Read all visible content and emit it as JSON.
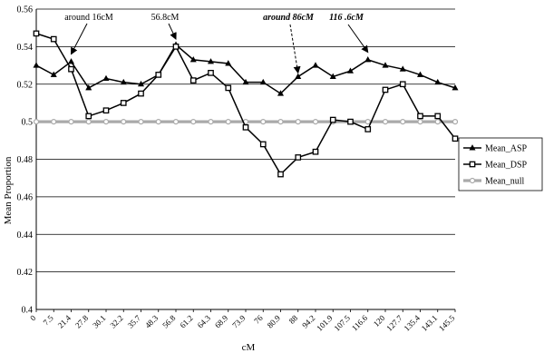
{
  "chart_data": {
    "type": "line",
    "title": "",
    "xlabel": "cM",
    "ylabel": "Mean Proportion",
    "ylim": [
      0.4,
      0.56
    ],
    "yticks": [
      "0.4",
      "0.42",
      "0.44",
      "0.46",
      "0.48",
      "0.5",
      "0.52",
      "0.54",
      "0.56"
    ],
    "grid": "horizontal",
    "legend_position": "right",
    "categories": [
      "0",
      "7.5",
      "21.4",
      "27.8",
      "30.1",
      "32.2",
      "35.7",
      "48.3",
      "56.8",
      "61.2",
      "64.3",
      "68.9",
      "73.9",
      "76",
      "80.9",
      "88",
      "94.2",
      "101.9",
      "107.5",
      "116.6",
      "120",
      "127.7",
      "135.4",
      "143.1",
      "145.5"
    ],
    "series": [
      {
        "name": "Mean_ASP",
        "marker": "triangle",
        "color": "#000000",
        "values": [
          0.53,
          0.525,
          0.532,
          0.518,
          0.523,
          0.521,
          0.52,
          0.525,
          0.541,
          0.533,
          0.532,
          0.531,
          0.521,
          0.521,
          0.515,
          0.524,
          0.53,
          0.524,
          0.527,
          0.533,
          0.53,
          0.528,
          0.525,
          0.521,
          0.518
        ]
      },
      {
        "name": "Mean_DSP",
        "marker": "square",
        "color": "#000000",
        "values": [
          0.547,
          0.544,
          0.528,
          0.503,
          0.506,
          0.51,
          0.515,
          0.525,
          0.54,
          0.522,
          0.526,
          0.518,
          0.497,
          0.488,
          0.472,
          0.481,
          0.484,
          0.501,
          0.5,
          0.496,
          0.517,
          0.52,
          0.503,
          0.503,
          0.491
        ]
      },
      {
        "name": "Mean_null",
        "marker": "circle",
        "color": "#aaaaaa",
        "values": [
          0.5,
          0.5,
          0.5,
          0.5,
          0.5,
          0.5,
          0.5,
          0.5,
          0.5,
          0.5,
          0.5,
          0.5,
          0.5,
          0.5,
          0.5,
          0.5,
          0.5,
          0.5,
          0.5,
          0.5,
          0.5,
          0.5,
          0.5,
          0.5,
          0.5
        ]
      }
    ],
    "annotations": [
      {
        "text": "around 16cM",
        "style": "normal",
        "arrow": "solid",
        "at_index": 2
      },
      {
        "text": "56.8cM",
        "style": "normal",
        "arrow": "solid",
        "at_index": 8
      },
      {
        "text": "around 86cM",
        "style": "bold-italic",
        "arrow": "dashed",
        "at_index": 15
      },
      {
        "text": "116 .6cM",
        "style": "bold-italic",
        "arrow": "solid",
        "at_index": 19
      }
    ]
  }
}
